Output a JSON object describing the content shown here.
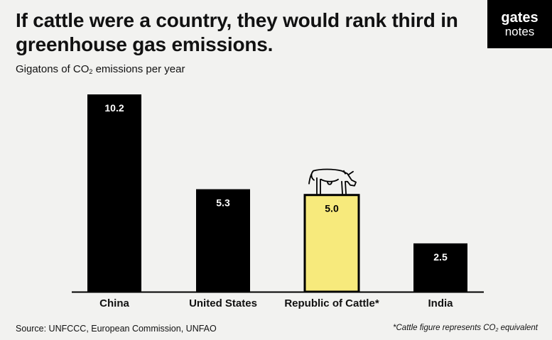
{
  "title": "If cattle were a country, they would rank third in greenhouse gas emissions.",
  "subtitle": {
    "before": "Gigatons of CO",
    "sub": "2",
    "after": " emissions per year"
  },
  "logo": {
    "line1": "gates",
    "line2": "notes"
  },
  "footer": {
    "source": "Source: UNFCCC, European Commission, UNFAO",
    "note": {
      "before": "*Cattle figure represents CO",
      "sub": "2",
      "after": " equivalent"
    }
  },
  "chart_data": {
    "type": "bar",
    "categories": [
      "China",
      "United States",
      "Republic of Cattle*",
      "India"
    ],
    "values": [
      10.2,
      5.3,
      5.0,
      2.5
    ],
    "value_labels": [
      "10.2",
      "5.3",
      "5.0",
      "2.5"
    ],
    "colors": [
      "#000000",
      "#000000",
      "#f7ea7c",
      "#000000"
    ],
    "highlight_icon": "cow-icon",
    "ylim": [
      0,
      10.2
    ],
    "grid": false,
    "xlabel": "",
    "ylabel": ""
  }
}
